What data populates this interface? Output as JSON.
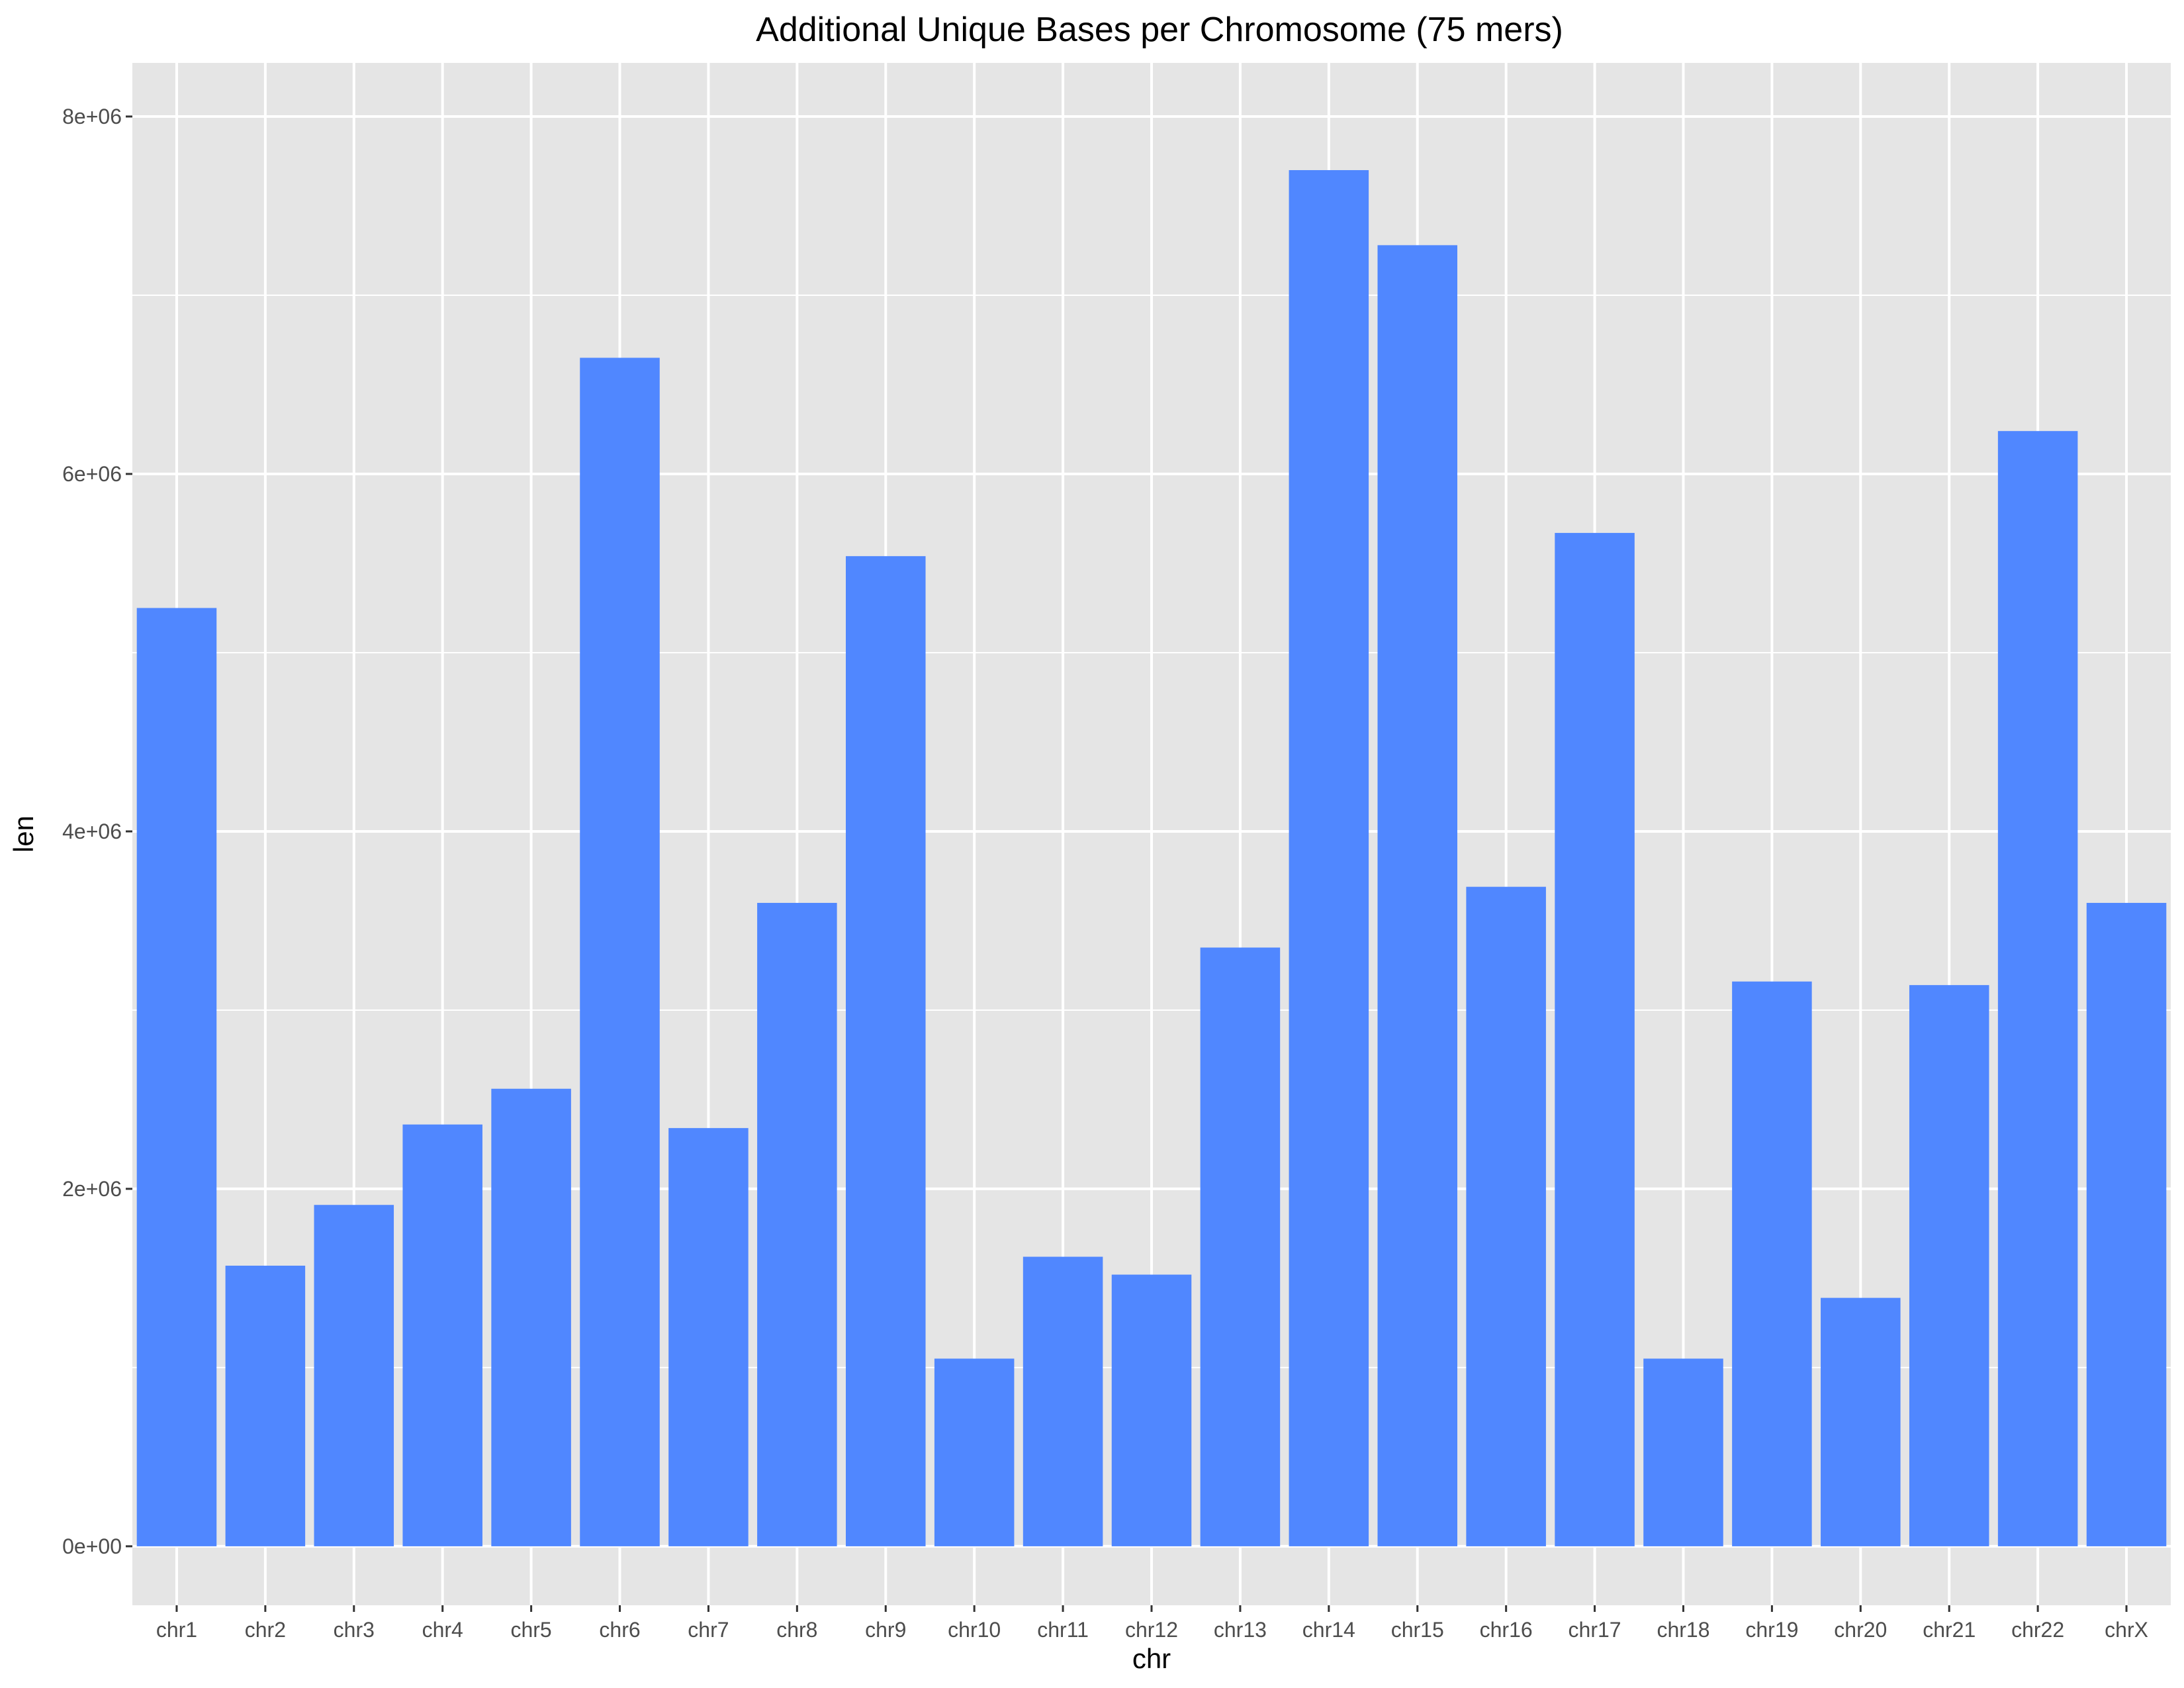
{
  "chart_data": {
    "type": "bar",
    "title": "Additional Unique Bases per Chromosome (75 mers)",
    "xlabel": "chr",
    "ylabel": "len",
    "categories": [
      "chr1",
      "chr2",
      "chr3",
      "chr4",
      "chr5",
      "chr6",
      "chr7",
      "chr8",
      "chr9",
      "chr10",
      "chr11",
      "chr12",
      "chr13",
      "chr14",
      "chr15",
      "chr16",
      "chr17",
      "chr18",
      "chr19",
      "chr20",
      "chr21",
      "chr22",
      "chrX"
    ],
    "values": [
      5250000,
      1570000,
      1910000,
      2360000,
      2560000,
      6650000,
      2340000,
      3600000,
      5540000,
      1050000,
      1620000,
      1520000,
      3350000,
      7700000,
      7280000,
      3690000,
      5670000,
      1050000,
      3160000,
      1390000,
      3140000,
      6240000,
      3600000
    ],
    "ylim": [
      -330000,
      8300000
    ],
    "yticks": [
      0,
      2000000,
      4000000,
      6000000,
      8000000
    ],
    "ytick_labels": [
      "0e+00",
      "2e+06",
      "4e+06",
      "6e+06",
      "8e+06"
    ],
    "grid": true,
    "bar_color": "#5087FF",
    "panel_color": "#E5E5E5",
    "grid_color": "#FFFFFF"
  }
}
